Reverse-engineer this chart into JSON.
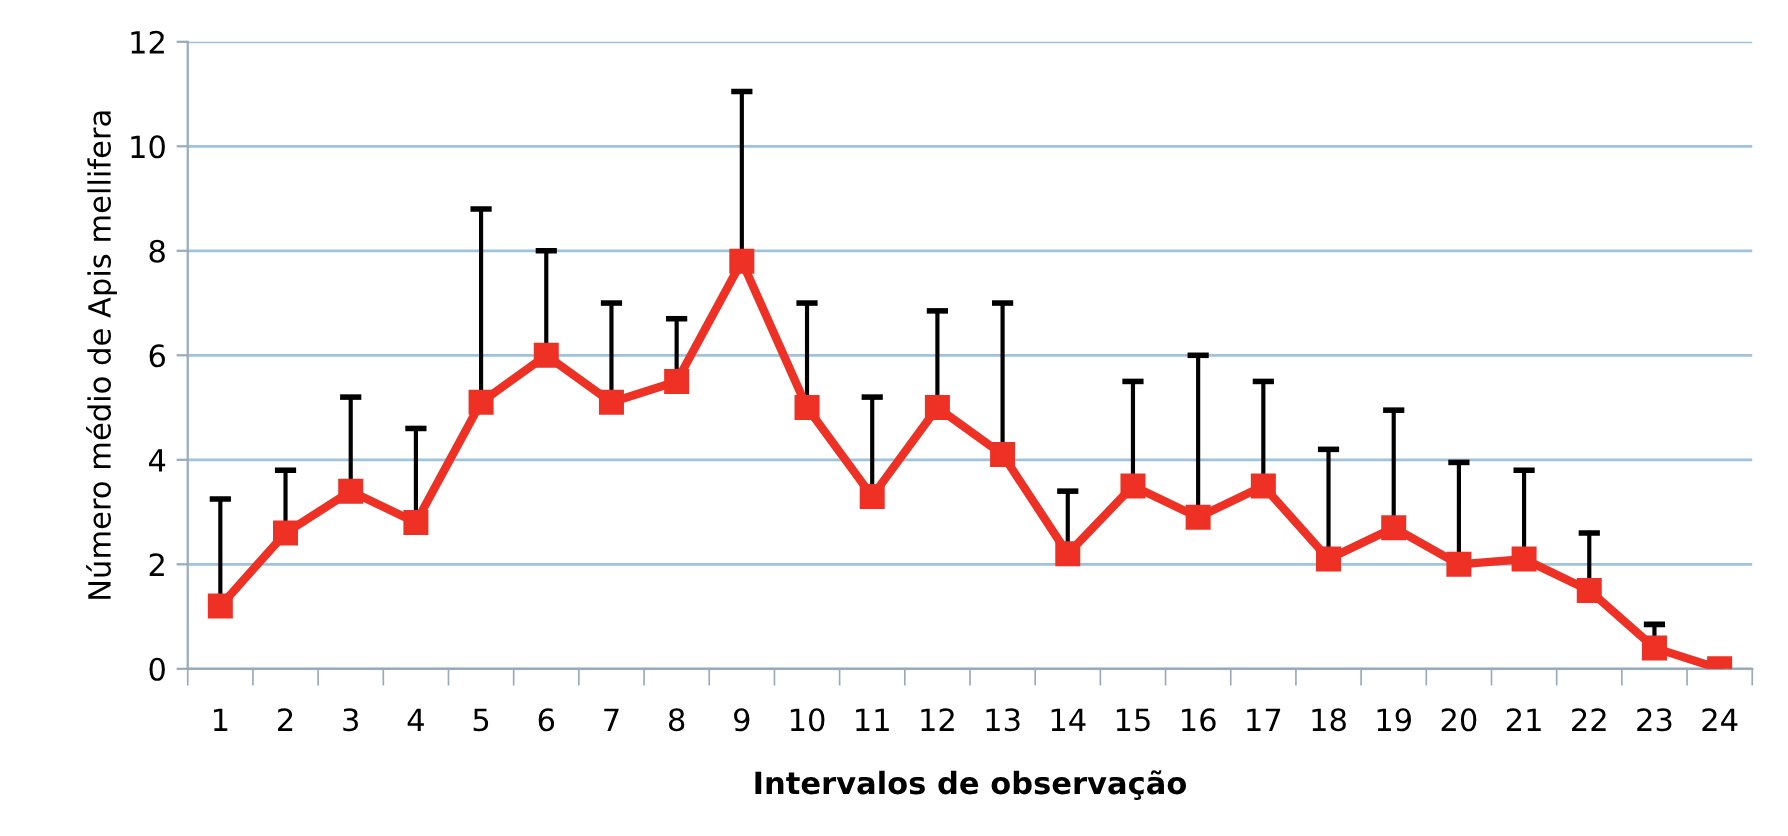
{
  "chart_data": {
    "type": "line",
    "xlabel": "Intervalos de observação",
    "ylabel": "Número médio de Apis mellifera",
    "categories": [
      "1",
      "2",
      "3",
      "4",
      "5",
      "6",
      "7",
      "8",
      "9",
      "10",
      "11",
      "12",
      "13",
      "14",
      "15",
      "16",
      "17",
      "18",
      "19",
      "20",
      "21",
      "22",
      "23",
      "24"
    ],
    "series": [
      {
        "color": "#ee3124",
        "values": [
          1.2,
          2.6,
          3.4,
          2.8,
          5.1,
          6.0,
          5.1,
          5.5,
          7.8,
          5.0,
          3.3,
          5.0,
          4.1,
          2.2,
          3.5,
          2.9,
          3.5,
          2.1,
          2.7,
          2.0,
          2.1,
          1.5,
          0.4,
          0.0
        ],
        "errors": [
          [
            1.2,
            3.25
          ],
          [
            2.6,
            3.8
          ],
          [
            3.4,
            5.2
          ],
          [
            2.8,
            4.6
          ],
          [
            5.1,
            8.8
          ],
          [
            6.0,
            8.0
          ],
          [
            5.1,
            7.0
          ],
          [
            5.5,
            6.7
          ],
          [
            7.8,
            11.05
          ],
          [
            5.0,
            7.0
          ],
          [
            3.3,
            5.2
          ],
          [
            5.0,
            6.85
          ],
          [
            4.1,
            7.0
          ],
          [
            2.2,
            3.4
          ],
          [
            3.5,
            5.5
          ],
          [
            2.9,
            6.0
          ],
          [
            3.5,
            5.5
          ],
          [
            2.1,
            4.2
          ],
          [
            2.7,
            4.95
          ],
          [
            2.0,
            3.95
          ],
          [
            2.1,
            3.8
          ],
          [
            1.5,
            2.6
          ],
          [
            0.4,
            0.85
          ],
          null
        ]
      }
    ],
    "ylim": [
      0,
      12
    ],
    "yticks": [
      0,
      2,
      4,
      6,
      8,
      10,
      12
    ],
    "grid": "y",
    "marker": "square",
    "line_style": "solid",
    "legend": false
  }
}
